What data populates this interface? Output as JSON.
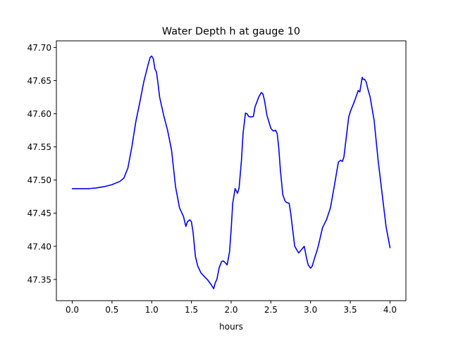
{
  "chart_data": {
    "type": "line",
    "title": "Water Depth h at gauge 10",
    "xlabel": "hours",
    "ylabel": "",
    "xlim": [
      -0.2,
      4.2
    ],
    "ylim": [
      47.318,
      47.71
    ],
    "xticks": [
      0.0,
      0.5,
      1.0,
      1.5,
      2.0,
      2.5,
      3.0,
      3.5,
      4.0
    ],
    "xtick_labels": [
      "0.0",
      "0.5",
      "1.0",
      "1.5",
      "2.0",
      "2.5",
      "3.0",
      "3.5",
      "4.0"
    ],
    "yticks": [
      47.35,
      47.4,
      47.45,
      47.5,
      47.55,
      47.6,
      47.65,
      47.7
    ],
    "ytick_labels": [
      "47.35",
      "47.40",
      "47.45",
      "47.50",
      "47.55",
      "47.60",
      "47.65",
      "47.70"
    ],
    "grid": false,
    "series": [
      {
        "color": "#0000ff",
        "x": [
          0.0,
          0.1,
          0.2,
          0.3,
          0.4,
          0.5,
          0.6,
          0.65,
          0.7,
          0.75,
          0.8,
          0.85,
          0.9,
          0.95,
          0.98,
          1.0,
          1.02,
          1.04,
          1.06,
          1.08,
          1.1,
          1.15,
          1.2,
          1.25,
          1.3,
          1.35,
          1.4,
          1.43,
          1.45,
          1.48,
          1.5,
          1.52,
          1.55,
          1.58,
          1.6,
          1.62,
          1.65,
          1.7,
          1.75,
          1.78,
          1.8,
          1.82,
          1.85,
          1.88,
          1.9,
          1.92,
          1.95,
          1.98,
          2.0,
          2.02,
          2.05,
          2.08,
          2.1,
          2.13,
          2.15,
          2.18,
          2.2,
          2.22,
          2.25,
          2.28,
          2.3,
          2.35,
          2.38,
          2.4,
          2.42,
          2.45,
          2.5,
          2.53,
          2.56,
          2.58,
          2.6,
          2.62,
          2.65,
          2.68,
          2.7,
          2.73,
          2.75,
          2.78,
          2.8,
          2.85,
          2.9,
          2.92,
          2.95,
          2.97,
          3.0,
          3.02,
          3.05,
          3.08,
          3.1,
          3.15,
          3.2,
          3.25,
          3.3,
          3.35,
          3.38,
          3.4,
          3.42,
          3.45,
          3.48,
          3.5,
          3.55,
          3.6,
          3.62,
          3.65,
          3.66,
          3.68,
          3.7,
          3.72,
          3.75,
          3.8,
          3.85,
          3.9,
          3.95,
          4.0
        ],
        "y": [
          47.487,
          47.487,
          47.487,
          47.488,
          47.49,
          47.493,
          47.498,
          47.503,
          47.518,
          47.55,
          47.588,
          47.617,
          47.648,
          47.672,
          47.685,
          47.687,
          47.683,
          47.668,
          47.663,
          47.645,
          47.625,
          47.598,
          47.575,
          47.545,
          47.49,
          47.458,
          47.445,
          47.43,
          47.437,
          47.44,
          47.437,
          47.422,
          47.385,
          47.37,
          47.365,
          47.36,
          47.356,
          47.35,
          47.342,
          47.336,
          47.345,
          47.35,
          47.368,
          47.377,
          47.378,
          47.376,
          47.372,
          47.392,
          47.425,
          47.465,
          47.487,
          47.48,
          47.488,
          47.53,
          47.57,
          47.601,
          47.6,
          47.596,
          47.595,
          47.596,
          47.61,
          47.626,
          47.632,
          47.63,
          47.62,
          47.598,
          47.578,
          47.574,
          47.575,
          47.57,
          47.548,
          47.515,
          47.478,
          47.468,
          47.466,
          47.465,
          47.45,
          47.42,
          47.4,
          47.39,
          47.397,
          47.4,
          47.382,
          47.372,
          47.367,
          47.37,
          47.382,
          47.393,
          47.402,
          47.428,
          47.44,
          47.458,
          47.492,
          47.527,
          47.53,
          47.528,
          47.535,
          47.565,
          47.595,
          47.603,
          47.618,
          47.635,
          47.633,
          47.655,
          47.652,
          47.652,
          47.648,
          47.638,
          47.625,
          47.59,
          47.53,
          47.48,
          47.43,
          47.398
        ]
      }
    ]
  }
}
